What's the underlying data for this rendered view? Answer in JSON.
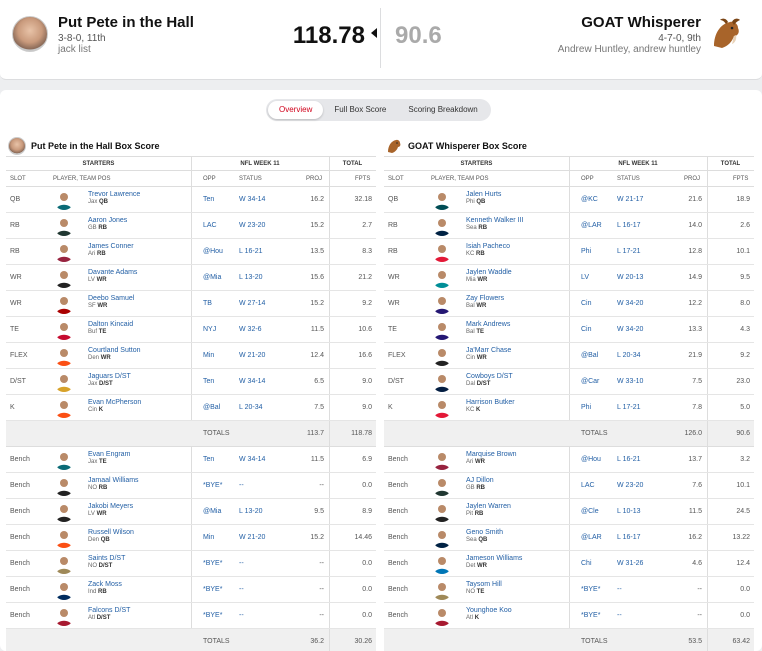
{
  "header": {
    "team1": {
      "name": "Put Pete in the Hall",
      "record": "3-8-0, 11th",
      "owner": "jack list",
      "score": "118.78"
    },
    "team2": {
      "name": "GOAT Whisperer",
      "record": "4-7-0, 9th",
      "owner": "Andrew Huntley, andrew huntley",
      "score": "90.6"
    }
  },
  "tabs": [
    "Overview",
    "Full Box Score",
    "Scoring Breakdown"
  ],
  "cols": {
    "starters": "STARTERS",
    "week": "NFL WEEK 11",
    "total": "TOTAL",
    "slot": "SLOT",
    "player": "PLAYER, TEAM POS",
    "opp": "OPP",
    "status": "STATUS",
    "proj": "PROJ",
    "fpts": "FPTS"
  },
  "left": {
    "title": "Put Pete in the Hall Box Score",
    "starters": [
      {
        "slot": "QB",
        "name": "Trevor Lawrence",
        "team": "Jax",
        "pos": "QB",
        "opp": "Ten",
        "status": "W 34-14",
        "proj": "16.2",
        "fpts": "32.18",
        "color": "#0b6b76"
      },
      {
        "slot": "RB",
        "name": "Aaron Jones",
        "team": "GB",
        "pos": "RB",
        "opp": "LAC",
        "status": "W 23-20",
        "proj": "15.2",
        "fpts": "2.7",
        "color": "#203731"
      },
      {
        "slot": "RB",
        "name": "James Conner",
        "team": "Ari",
        "pos": "RB",
        "opp": "@Hou",
        "status": "L 16-21",
        "proj": "13.5",
        "fpts": "8.3",
        "color": "#97233f"
      },
      {
        "slot": "WR",
        "name": "Davante Adams",
        "team": "LV",
        "pos": "WR",
        "opp": "@Mia",
        "status": "L 13-20",
        "proj": "15.6",
        "fpts": "21.2",
        "color": "#222"
      },
      {
        "slot": "WR",
        "name": "Deebo Samuel",
        "team": "SF",
        "pos": "WR",
        "opp": "TB",
        "status": "W 27-14",
        "proj": "15.2",
        "fpts": "9.2",
        "color": "#aa0000"
      },
      {
        "slot": "TE",
        "name": "Dalton Kincaid",
        "team": "Buf",
        "pos": "TE",
        "opp": "NYJ",
        "status": "W 32-6",
        "proj": "11.5",
        "fpts": "10.6",
        "color": "#c60c30"
      },
      {
        "slot": "FLEX",
        "name": "Courtland Sutton",
        "team": "Den",
        "pos": "WR",
        "opp": "Min",
        "status": "W 21-20",
        "proj": "12.4",
        "fpts": "16.6",
        "color": "#fb4f14"
      },
      {
        "slot": "D/ST",
        "name": "Jaguars D/ST",
        "team": "Jax",
        "pos": "D/ST",
        "opp": "Ten",
        "status": "W 34-14",
        "proj": "6.5",
        "fpts": "9.0",
        "color": "#d7a22a"
      },
      {
        "slot": "K",
        "name": "Evan McPherson",
        "team": "Cin",
        "pos": "K",
        "opp": "@Bal",
        "status": "L 20-34",
        "proj": "7.5",
        "fpts": "9.0",
        "color": "#fb4f14"
      }
    ],
    "total_label": "TOTALS",
    "starters_proj": "113.7",
    "starters_fpts": "118.78",
    "bench": [
      {
        "slot": "Bench",
        "name": "Evan Engram",
        "team": "Jax",
        "pos": "TE",
        "opp": "Ten",
        "status": "W 34-14",
        "proj": "11.5",
        "fpts": "6.9",
        "color": "#0b6b76"
      },
      {
        "slot": "Bench",
        "name": "Jamaal Williams",
        "team": "NO",
        "pos": "RB",
        "opp": "*BYE*",
        "status": "--",
        "proj": "--",
        "fpts": "0.0",
        "color": "#222"
      },
      {
        "slot": "Bench",
        "name": "Jakobi Meyers",
        "team": "LV",
        "pos": "WR",
        "opp": "@Mia",
        "status": "L 13-20",
        "proj": "9.5",
        "fpts": "8.9",
        "color": "#222"
      },
      {
        "slot": "Bench",
        "name": "Russell Wilson",
        "team": "Den",
        "pos": "QB",
        "opp": "Min",
        "status": "W 21-20",
        "proj": "15.2",
        "fpts": "14.46",
        "color": "#fb4f14"
      },
      {
        "slot": "Bench",
        "name": "Saints D/ST",
        "team": "NO",
        "pos": "D/ST",
        "opp": "*BYE*",
        "status": "--",
        "proj": "--",
        "fpts": "0.0",
        "color": "#9f8958"
      },
      {
        "slot": "Bench",
        "name": "Zack Moss",
        "team": "Ind",
        "pos": "RB",
        "opp": "*BYE*",
        "status": "--",
        "proj": "--",
        "fpts": "0.0",
        "color": "#002c5f"
      },
      {
        "slot": "Bench",
        "name": "Falcons D/ST",
        "team": "Atl",
        "pos": "D/ST",
        "opp": "*BYE*",
        "status": "--",
        "proj": "--",
        "fpts": "0.0",
        "color": "#a71930"
      }
    ],
    "bench_proj": "36.2",
    "bench_fpts": "30.26"
  },
  "right": {
    "title": "GOAT Whisperer Box Score",
    "starters": [
      {
        "slot": "QB",
        "name": "Jalen Hurts",
        "team": "Phi",
        "pos": "QB",
        "opp": "@KC",
        "status": "W 21-17",
        "proj": "21.6",
        "fpts": "18.9",
        "color": "#004c54"
      },
      {
        "slot": "RB",
        "name": "Kenneth Walker III",
        "team": "Sea",
        "pos": "RB",
        "opp": "@LAR",
        "status": "L 16-17",
        "proj": "14.0",
        "fpts": "2.6",
        "color": "#002244"
      },
      {
        "slot": "RB",
        "name": "Isiah Pacheco",
        "team": "KC",
        "pos": "RB",
        "opp": "Phi",
        "status": "L 17-21",
        "proj": "12.8",
        "fpts": "10.1",
        "color": "#e31837"
      },
      {
        "slot": "WR",
        "name": "Jaylen Waddle",
        "team": "Mia",
        "pos": "WR",
        "opp": "LV",
        "status": "W 20-13",
        "proj": "14.9",
        "fpts": "9.5",
        "color": "#008e97"
      },
      {
        "slot": "WR",
        "name": "Zay Flowers",
        "team": "Bal",
        "pos": "WR",
        "opp": "Cin",
        "status": "W 34-20",
        "proj": "12.2",
        "fpts": "8.0",
        "color": "#241773"
      },
      {
        "slot": "TE",
        "name": "Mark Andrews",
        "team": "Bal",
        "pos": "TE",
        "opp": "Cin",
        "status": "W 34-20",
        "proj": "13.3",
        "fpts": "4.3",
        "color": "#241773"
      },
      {
        "slot": "FLEX",
        "name": "Ja'Marr Chase",
        "team": "Cin",
        "pos": "WR",
        "opp": "@Bal",
        "status": "L 20-34",
        "proj": "21.9",
        "fpts": "9.2",
        "color": "#222"
      },
      {
        "slot": "D/ST",
        "name": "Cowboys D/ST",
        "team": "Dal",
        "pos": "D/ST",
        "opp": "@Car",
        "status": "W 33-10",
        "proj": "7.5",
        "fpts": "23.0",
        "color": "#041e42"
      },
      {
        "slot": "K",
        "name": "Harrison Butker",
        "team": "KC",
        "pos": "K",
        "opp": "Phi",
        "status": "L 17-21",
        "proj": "7.8",
        "fpts": "5.0",
        "color": "#e31837"
      }
    ],
    "total_label": "TOTALS",
    "starters_proj": "126.0",
    "starters_fpts": "90.6",
    "bench": [
      {
        "slot": "Bench",
        "name": "Marquise Brown",
        "team": "Ari",
        "pos": "WR",
        "opp": "@Hou",
        "status": "L 16-21",
        "proj": "13.7",
        "fpts": "3.2",
        "color": "#97233f"
      },
      {
        "slot": "Bench",
        "name": "AJ Dillon",
        "team": "GB",
        "pos": "RB",
        "opp": "LAC",
        "status": "W 23-20",
        "proj": "7.6",
        "fpts": "10.1",
        "color": "#203731"
      },
      {
        "slot": "Bench",
        "name": "Jaylen Warren",
        "team": "Pit",
        "pos": "RB",
        "opp": "@Cle",
        "status": "L 10-13",
        "proj": "11.5",
        "fpts": "24.5",
        "color": "#222"
      },
      {
        "slot": "Bench",
        "name": "Geno Smith",
        "team": "Sea",
        "pos": "QB",
        "opp": "@LAR",
        "status": "L 16-17",
        "proj": "16.2",
        "fpts": "13.22",
        "color": "#002244"
      },
      {
        "slot": "Bench",
        "name": "Jameson Williams",
        "team": "Det",
        "pos": "WR",
        "opp": "Chi",
        "status": "W 31-26",
        "proj": "4.6",
        "fpts": "12.4",
        "color": "#0076b6"
      },
      {
        "slot": "Bench",
        "name": "Taysom Hill",
        "team": "NO",
        "pos": "TE",
        "opp": "*BYE*",
        "status": "--",
        "proj": "--",
        "fpts": "0.0",
        "color": "#9f8958"
      },
      {
        "slot": "Bench",
        "name": "Younghoe Koo",
        "team": "Atl",
        "pos": "K",
        "opp": "*BYE*",
        "status": "--",
        "proj": "--",
        "fpts": "0.0",
        "color": "#a71930"
      }
    ],
    "bench_proj": "53.5",
    "bench_fpts": "63.42"
  }
}
